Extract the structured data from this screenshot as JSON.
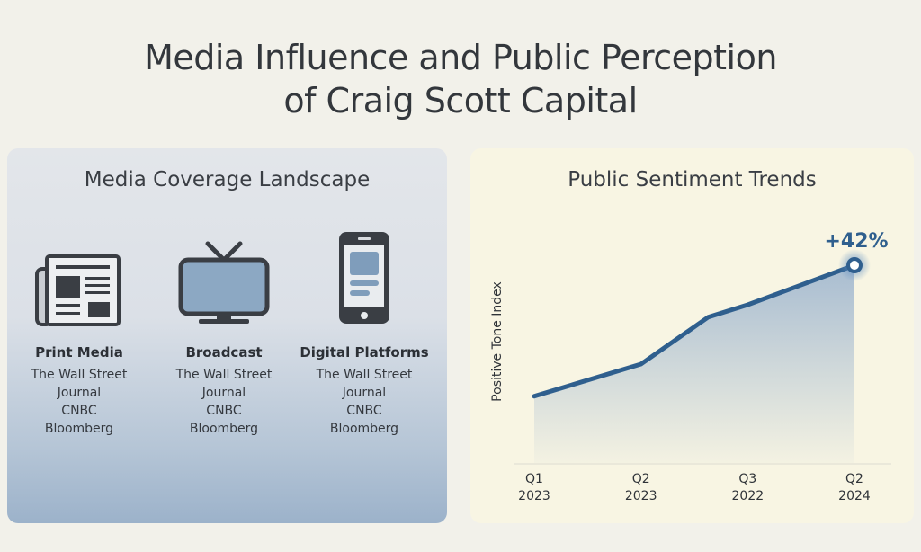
{
  "title": "Media Influence and Public Perception\nof Craig Scott Capital",
  "left_panel": {
    "title": "Media Coverage Landscape",
    "categories": [
      {
        "name": "Print Media",
        "icon": "newspaper-icon",
        "sources": [
          "The Wall Street\nJournal",
          "CNBC",
          "Bloomberg"
        ]
      },
      {
        "name": "Broadcast",
        "icon": "tv-icon",
        "sources": [
          "The Wall Street\nJournal",
          "CNBC",
          "Bloomberg"
        ]
      },
      {
        "name": "Digital Platforms",
        "icon": "smartphone-icon",
        "sources": [
          "The Wall Street\nJournal",
          "CNBC",
          "Bloomberg"
        ]
      }
    ]
  },
  "right_panel": {
    "title": "Public Sentiment Trends"
  },
  "chart_data": {
    "type": "area",
    "title": "Public Sentiment Trends",
    "ylabel": "Positive Tone Index",
    "xlabel": "",
    "ticks": [
      {
        "pos": 0,
        "line1": "Q1",
        "line2": "2023"
      },
      {
        "pos": 1,
        "line1": "Q2",
        "line2": "2023"
      },
      {
        "pos": 2,
        "line1": "Q3",
        "line2": "2022"
      },
      {
        "pos": 3,
        "line1": "Q2",
        "line2": "2024"
      }
    ],
    "x": [
      0,
      1,
      1.63,
      2,
      3
    ],
    "values": [
      27,
      40,
      59,
      64,
      80
    ],
    "ylim": [
      0,
      100
    ],
    "grid": false,
    "annotation": "+42%",
    "line_color": "#2f5f8e",
    "fill_color": "#9fb6cf"
  }
}
